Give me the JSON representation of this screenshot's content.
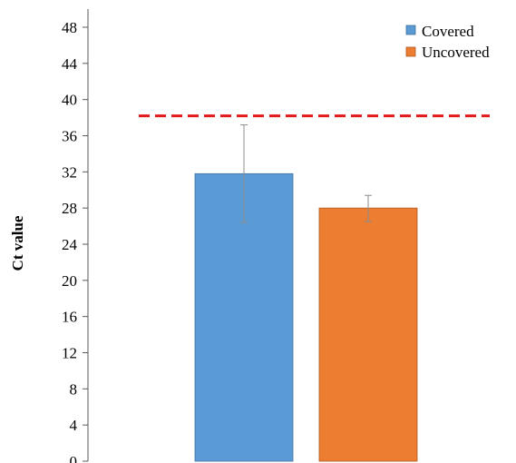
{
  "chart_data": {
    "type": "bar",
    "title": "",
    "xlabel": "",
    "ylabel": "Ct value",
    "ylim": [
      0,
      48
    ],
    "yticks": [
      0,
      4,
      8,
      12,
      16,
      20,
      24,
      28,
      32,
      36,
      40,
      44,
      48
    ],
    "grid": false,
    "legend_position": "top-right",
    "series": [
      {
        "name": "Covered",
        "value": 31.8,
        "error_low": 26.4,
        "error_high": 37.2,
        "color": "#5b9bd5"
      },
      {
        "name": "Uncovered",
        "value": 28.0,
        "error_low": 26.5,
        "error_high": 29.4,
        "color": "#ed7d31"
      }
    ],
    "threshold": {
      "value": 38.2,
      "color": "#e31a1c",
      "style": "dashed"
    }
  }
}
